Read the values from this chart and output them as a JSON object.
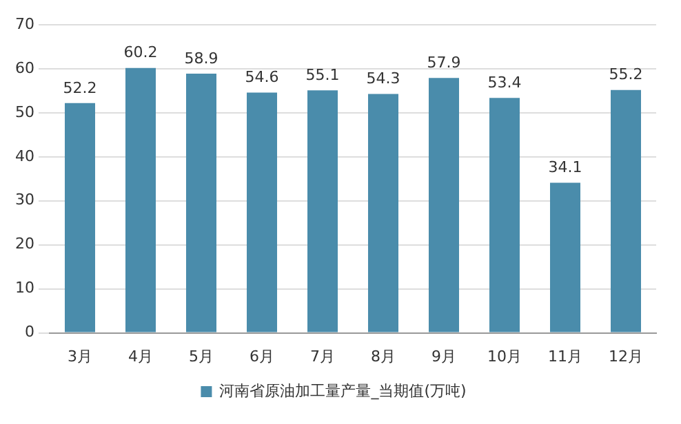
{
  "chart_data": {
    "type": "bar",
    "categories": [
      "3月",
      "4月",
      "5月",
      "6月",
      "7月",
      "8月",
      "9月",
      "10月",
      "11月",
      "12月"
    ],
    "series": [
      {
        "name": "河南省原油加工量产量_当期值(万吨)",
        "color": "#4a8cab",
        "values": [
          52.2,
          60.2,
          58.9,
          54.6,
          55.1,
          54.3,
          57.9,
          53.4,
          34.1,
          55.2
        ]
      }
    ],
    "ylim": [
      0,
      70
    ],
    "yticks": [
      0,
      10,
      20,
      30,
      40,
      50,
      60,
      70
    ],
    "grid": "y",
    "legend": "bottom",
    "data_labels": true
  }
}
